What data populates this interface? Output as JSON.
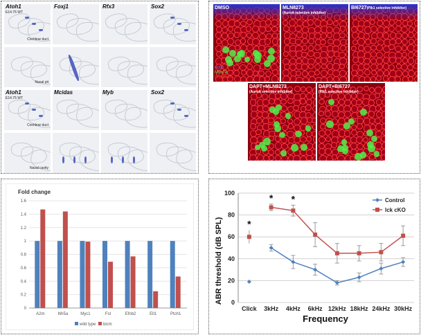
{
  "ish": {
    "rows": [
      {
        "genes": [
          "Atoh1",
          "Foxj1",
          "Rfx3",
          "Sox2"
        ],
        "sub": "E14.75 WT",
        "tissue": "Cochlear duct"
      },
      {
        "genes": [
          "",
          "",
          "",
          ""
        ],
        "sub": "",
        "tissue": "Nasal pit"
      },
      {
        "genes": [
          "Atoh1",
          "Mcidas",
          "Myb",
          "Sox2"
        ],
        "sub": "E14.75 WT",
        "tissue": "Cochlear duct"
      },
      {
        "genes": [
          "",
          "",
          "",
          ""
        ],
        "sub": "",
        "tissue": "Nasal cavity"
      }
    ]
  },
  "fluor": {
    "panels": [
      {
        "title": "DMSO",
        "subtitle": ""
      },
      {
        "title": "MLN8273",
        "subtitle": "(AuroA selective inhibitor)"
      },
      {
        "title": "BI6727",
        "subtitle": "(Plk1 selective inhibitor)"
      },
      {
        "title": "DAPT+MLN8273",
        "subtitle": "(AuroA selective inhibitor)"
      },
      {
        "title": "DAPT+BI6727",
        "subtitle": "(Plk1 selective inhibitor)"
      }
    ],
    "legend": [
      "Actin",
      "Myo7a",
      "Phalloidin"
    ]
  },
  "chart_data": [
    {
      "type": "bar",
      "title": "Fold change",
      "categories": [
        "A2m",
        "Itih5a",
        "Myc1",
        "Fst",
        "Efnb2",
        "Ell1",
        "Ptch1"
      ],
      "series": [
        {
          "name": "wild type",
          "color": "#4f81bd",
          "values": [
            1,
            1,
            1,
            1,
            1,
            1,
            1
          ]
        },
        {
          "name": "bicm",
          "color": "#c0504d",
          "values": [
            1.47,
            1.44,
            0.99,
            0.69,
            0.77,
            0.25,
            0.47
          ]
        }
      ],
      "ylim": [
        0,
        1.6
      ],
      "yticks": [
        0,
        0.2,
        0.4,
        0.6,
        0.8,
        1,
        1.2,
        1.4,
        1.6
      ],
      "ytick_labels": [
        "0",
        "0.2",
        "0.4",
        "0.6",
        "0.8",
        "1",
        "1.2",
        "1.4",
        "1.6"
      ],
      "legend_position": "bottom"
    },
    {
      "type": "line",
      "xlabel": "Frequency",
      "ylabel": "ABR threshold (dB SPL)",
      "categories": [
        "Click",
        "3kHz",
        "4kHz",
        "6kHz",
        "12kHz",
        "18kHz",
        "24kHz",
        "30kHz"
      ],
      "ylim": [
        0,
        100
      ],
      "yticks": [
        0,
        20,
        40,
        60,
        80,
        100
      ],
      "series": [
        {
          "name": "Control",
          "color": "#4f81bd",
          "values": [
            null,
            50,
            37,
            30,
            18,
            23,
            31,
            37
          ],
          "errors": [
            null,
            3,
            6,
            5,
            2,
            4,
            5,
            4
          ]
        },
        {
          "name": "lck cKO",
          "color": "#c0504d",
          "values": [
            null,
            87,
            84,
            62,
            45,
            45,
            46,
            61
          ],
          "errors": [
            null,
            3,
            5,
            11,
            9,
            7,
            8,
            9
          ]
        }
      ],
      "click_points": [
        {
          "series": "Control",
          "value": 19
        },
        {
          "series": "lck cKO",
          "value": 60,
          "error": 6
        }
      ],
      "significance": [
        "Click",
        "3kHz",
        "4kHz"
      ],
      "significance_marker": "*",
      "legend_position": "top-right"
    }
  ]
}
